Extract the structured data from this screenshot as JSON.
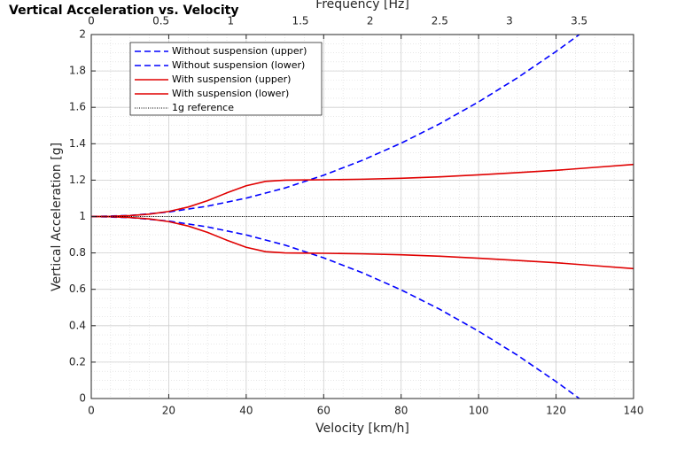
{
  "chart_data": {
    "type": "line",
    "title": "Vertical Acceleration vs. Velocity",
    "xlabel": "Velocity [km/h]",
    "ylabel": "Vertical Acceleration [g]",
    "top_xlabel": "Frequency [Hz]",
    "xlim": [
      0,
      140
    ],
    "ylim": [
      0,
      2
    ],
    "top_xlim": [
      0,
      3.89
    ],
    "x_ticks": [
      0,
      20,
      40,
      60,
      80,
      100,
      120,
      140
    ],
    "y_ticks": [
      0,
      0.2,
      0.4,
      0.6,
      0.8,
      1,
      1.2,
      1.4,
      1.6,
      1.8,
      2
    ],
    "top_ticks": [
      0,
      0.5,
      1,
      1.5,
      2,
      2.5,
      3,
      3.5
    ],
    "x_tick_labels": [
      "0",
      "20",
      "40",
      "60",
      "80",
      "100",
      "120",
      "140"
    ],
    "y_tick_labels": [
      "0",
      "0.2",
      "0.4",
      "0.6",
      "0.8",
      "1",
      "1.2",
      "1.4",
      "1.6",
      "1.8",
      "2"
    ],
    "top_tick_labels": [
      "0",
      "0.5",
      "1",
      "1.5",
      "2",
      "2.5",
      "3",
      "3.5"
    ],
    "grid": true,
    "minor_grid": true,
    "legend_position": "top-left",
    "series": [
      {
        "name": "Without suspension (upper)",
        "color": "#0000ff",
        "style": "dashed",
        "x": [
          0,
          10,
          20,
          30,
          40,
          50,
          60,
          70,
          80,
          90,
          100,
          110,
          120,
          126
        ],
        "y": [
          1.0,
          1.006,
          1.025,
          1.057,
          1.101,
          1.157,
          1.227,
          1.309,
          1.403,
          1.51,
          1.63,
          1.762,
          1.907,
          2.0
        ]
      },
      {
        "name": "Without suspension (lower)",
        "color": "#0000ff",
        "style": "dashed",
        "x": [
          0,
          10,
          20,
          30,
          40,
          50,
          60,
          70,
          80,
          90,
          100,
          110,
          120,
          126
        ],
        "y": [
          1.0,
          0.994,
          0.975,
          0.943,
          0.899,
          0.843,
          0.773,
          0.691,
          0.597,
          0.49,
          0.37,
          0.238,
          0.093,
          0.0
        ]
      },
      {
        "name": "With suspension (upper)",
        "color": "#e00000",
        "style": "solid",
        "x": [
          0,
          5,
          10,
          15,
          20,
          25,
          30,
          35,
          40,
          45,
          50,
          55,
          60,
          70,
          80,
          90,
          100,
          110,
          120,
          130,
          140
        ],
        "y": [
          1.0,
          1.001,
          1.005,
          1.013,
          1.028,
          1.052,
          1.087,
          1.13,
          1.169,
          1.193,
          1.2,
          1.201,
          1.202,
          1.205,
          1.21,
          1.218,
          1.229,
          1.241,
          1.254,
          1.27,
          1.286
        ]
      },
      {
        "name": "With suspension (lower)",
        "color": "#e00000",
        "style": "solid",
        "x": [
          0,
          5,
          10,
          15,
          20,
          25,
          30,
          35,
          40,
          45,
          50,
          55,
          60,
          70,
          80,
          90,
          100,
          110,
          120,
          130,
          140
        ],
        "y": [
          1.0,
          0.999,
          0.995,
          0.987,
          0.972,
          0.948,
          0.913,
          0.87,
          0.831,
          0.807,
          0.8,
          0.799,
          0.798,
          0.795,
          0.79,
          0.782,
          0.771,
          0.759,
          0.746,
          0.73,
          0.714
        ]
      },
      {
        "name": "1g reference",
        "color": "#000000",
        "style": "dotted",
        "x": [
          0,
          140
        ],
        "y": [
          1.0,
          1.0
        ]
      }
    ]
  }
}
